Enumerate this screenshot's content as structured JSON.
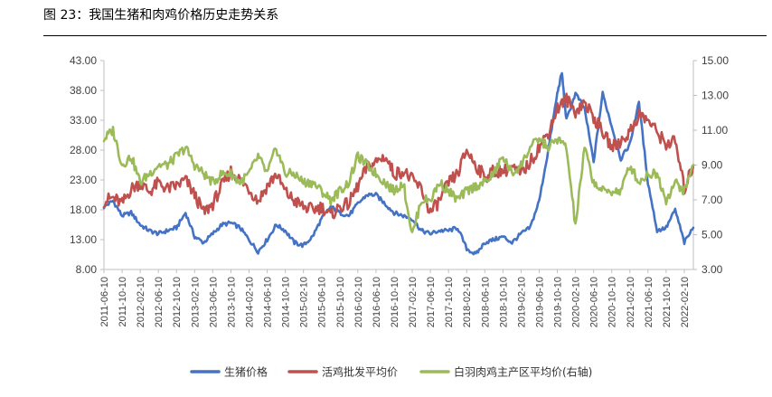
{
  "figure": {
    "title": "图 23：我国生猪和肉鸡价格历史走势关系"
  },
  "colors": {
    "pig": "#4472C4",
    "chicken": "#C0504D",
    "broiler": "#9BBB59",
    "axis": "#BFBFBF"
  },
  "chart_data": {
    "type": "line",
    "title": "",
    "xlabel": "",
    "ylabel": "",
    "ylim": [
      8,
      43
    ],
    "y2lim": [
      3,
      15
    ],
    "y_ticks": [
      "8.00",
      "13.00",
      "18.00",
      "23.00",
      "28.00",
      "33.00",
      "38.00",
      "43.00"
    ],
    "y2_ticks": [
      "3.00",
      "5.00",
      "7.00",
      "9.00",
      "11.00",
      "13.00",
      "15.00"
    ],
    "x_ticks": [
      "2011-06-10",
      "2011-10-10",
      "2012-02-10",
      "2012-06-10",
      "2012-10-10",
      "2013-02-10",
      "2013-06-10",
      "2013-10-10",
      "2014-02-10",
      "2014-06-10",
      "2014-10-10",
      "2015-02-10",
      "2015-06-10",
      "2015-10-10",
      "2016-02-10",
      "2016-06-10",
      "2016-10-10",
      "2017-02-10",
      "2017-06-10",
      "2017-10-10",
      "2018-02-10",
      "2018-06-10",
      "2018-10-10",
      "2019-02-10",
      "2019-06-10",
      "2019-10-10",
      "2020-02-10",
      "2020-06-10",
      "2020-10-10",
      "2021-02-10",
      "2021-06-10",
      "2021-10-10",
      "2022-02-10"
    ],
    "legend_position": "bottom",
    "series": [
      {
        "name": "生猪价格",
        "axis": "left",
        "x": [
          "2011-06",
          "2011-08",
          "2011-10",
          "2011-12",
          "2012-02",
          "2012-04",
          "2012-06",
          "2012-08",
          "2012-10",
          "2012-12",
          "2013-02",
          "2013-04",
          "2013-06",
          "2013-08",
          "2013-10",
          "2013-12",
          "2014-02",
          "2014-04",
          "2014-06",
          "2014-08",
          "2014-10",
          "2014-12",
          "2015-02",
          "2015-04",
          "2015-06",
          "2015-08",
          "2015-10",
          "2015-12",
          "2016-02",
          "2016-04",
          "2016-06",
          "2016-08",
          "2016-10",
          "2016-12",
          "2017-02",
          "2017-04",
          "2017-06",
          "2017-08",
          "2017-10",
          "2017-12",
          "2018-02",
          "2018-04",
          "2018-06",
          "2018-08",
          "2018-10",
          "2018-12",
          "2019-02",
          "2019-04",
          "2019-06",
          "2019-08",
          "2019-10",
          "2019-11",
          "2019-12",
          "2020-02",
          "2020-04",
          "2020-06",
          "2020-08",
          "2020-10",
          "2020-12",
          "2021-02",
          "2021-04",
          "2021-06",
          "2021-08",
          "2021-10",
          "2021-12",
          "2022-02",
          "2022-04"
        ],
        "values": [
          18.5,
          19.5,
          17.0,
          17.5,
          15.5,
          14.5,
          14.0,
          14.5,
          15.0,
          17.5,
          13.5,
          12.5,
          14.0,
          15.5,
          15.8,
          15.0,
          13.0,
          11.0,
          13.0,
          15.5,
          14.5,
          12.5,
          12.0,
          13.5,
          16.5,
          18.5,
          17.5,
          17.0,
          19.0,
          20.5,
          20.5,
          19.0,
          17.5,
          17.0,
          16.5,
          14.5,
          14.0,
          14.5,
          14.5,
          15.0,
          11.5,
          10.5,
          12.5,
          13.0,
          13.5,
          12.5,
          14.0,
          15.0,
          19.5,
          28.0,
          37.5,
          41.0,
          33.0,
          37.5,
          35.0,
          26.0,
          37.5,
          32.0,
          26.5,
          29.0,
          36.0,
          22.5,
          14.5,
          15.0,
          18.0,
          12.5,
          15.0
        ]
      },
      {
        "name": "活鸡批发平均价",
        "axis": "left",
        "x": [
          "2011-06",
          "2011-08",
          "2011-10",
          "2011-12",
          "2012-02",
          "2012-04",
          "2012-06",
          "2012-08",
          "2012-10",
          "2012-12",
          "2013-02",
          "2013-04",
          "2013-06",
          "2013-08",
          "2013-10",
          "2013-12",
          "2014-02",
          "2014-04",
          "2014-06",
          "2014-08",
          "2014-10",
          "2014-12",
          "2015-02",
          "2015-04",
          "2015-06",
          "2015-08",
          "2015-10",
          "2015-12",
          "2016-02",
          "2016-04",
          "2016-06",
          "2016-08",
          "2016-10",
          "2016-12",
          "2017-02",
          "2017-04",
          "2017-06",
          "2017-08",
          "2017-10",
          "2017-12",
          "2018-02",
          "2018-04",
          "2018-06",
          "2018-08",
          "2018-10",
          "2018-12",
          "2019-02",
          "2019-04",
          "2019-06",
          "2019-08",
          "2019-10",
          "2019-12",
          "2020-02",
          "2020-04",
          "2020-06",
          "2020-08",
          "2020-10",
          "2020-12",
          "2021-02",
          "2021-04",
          "2021-06",
          "2021-08",
          "2021-10",
          "2021-12",
          "2022-02",
          "2022-04"
        ],
        "values": [
          19.5,
          20.0,
          19.0,
          21.5,
          22.5,
          21.0,
          22.5,
          21.5,
          22.0,
          23.0,
          20.5,
          17.5,
          19.0,
          22.0,
          24.5,
          23.0,
          21.5,
          19.5,
          22.0,
          24.0,
          21.0,
          19.5,
          18.5,
          18.0,
          18.5,
          17.0,
          18.5,
          19.0,
          22.0,
          25.0,
          26.0,
          27.0,
          24.0,
          24.5,
          23.0,
          21.5,
          17.5,
          19.5,
          22.5,
          24.0,
          28.0,
          25.5,
          23.5,
          24.5,
          24.5,
          25.0,
          24.0,
          26.0,
          28.5,
          31.0,
          35.0,
          36.5,
          34.5,
          36.0,
          33.5,
          31.0,
          28.5,
          29.5,
          31.0,
          34.0,
          33.0,
          31.0,
          29.0,
          29.5,
          21.5,
          25.5
        ]
      },
      {
        "name": "白羽肉鸡主产区平均价(右轴)",
        "axis": "right",
        "x": [
          "2011-06",
          "2011-08",
          "2011-10",
          "2011-12",
          "2012-02",
          "2012-04",
          "2012-06",
          "2012-08",
          "2012-10",
          "2012-12",
          "2013-02",
          "2013-04",
          "2013-06",
          "2013-08",
          "2013-10",
          "2013-12",
          "2014-02",
          "2014-04",
          "2014-06",
          "2014-08",
          "2014-10",
          "2014-12",
          "2015-02",
          "2015-04",
          "2015-06",
          "2015-08",
          "2015-10",
          "2015-12",
          "2016-02",
          "2016-04",
          "2016-06",
          "2016-08",
          "2016-10",
          "2016-12",
          "2017-02",
          "2017-04",
          "2017-06",
          "2017-08",
          "2017-10",
          "2017-12",
          "2018-02",
          "2018-04",
          "2018-06",
          "2018-08",
          "2018-10",
          "2018-12",
          "2019-02",
          "2019-04",
          "2019-06",
          "2019-08",
          "2019-10",
          "2019-12",
          "2020-02",
          "2020-04",
          "2020-06",
          "2020-08",
          "2020-10",
          "2020-12",
          "2021-02",
          "2021-04",
          "2021-06",
          "2021-08",
          "2021-10",
          "2021-12",
          "2022-02",
          "2022-04"
        ],
        "values": [
          10.5,
          11.0,
          9.0,
          9.5,
          8.0,
          8.5,
          9.0,
          9.0,
          9.5,
          10.0,
          9.0,
          8.5,
          8.0,
          8.5,
          8.5,
          8.0,
          8.5,
          9.5,
          8.5,
          10.0,
          8.5,
          8.5,
          8.0,
          8.0,
          7.5,
          7.0,
          7.5,
          8.0,
          9.5,
          9.0,
          8.5,
          8.0,
          7.5,
          8.0,
          5.0,
          7.0,
          7.0,
          8.0,
          7.5,
          7.0,
          7.5,
          7.8,
          8.0,
          8.5,
          9.5,
          8.5,
          9.0,
          10.0,
          10.5,
          10.0,
          10.5,
          10.0,
          5.5,
          10.0,
          8.0,
          7.5,
          7.5,
          7.5,
          9.0,
          8.0,
          8.5,
          8.5,
          7.0,
          8.0,
          7.5,
          9.0
        ]
      }
    ]
  }
}
